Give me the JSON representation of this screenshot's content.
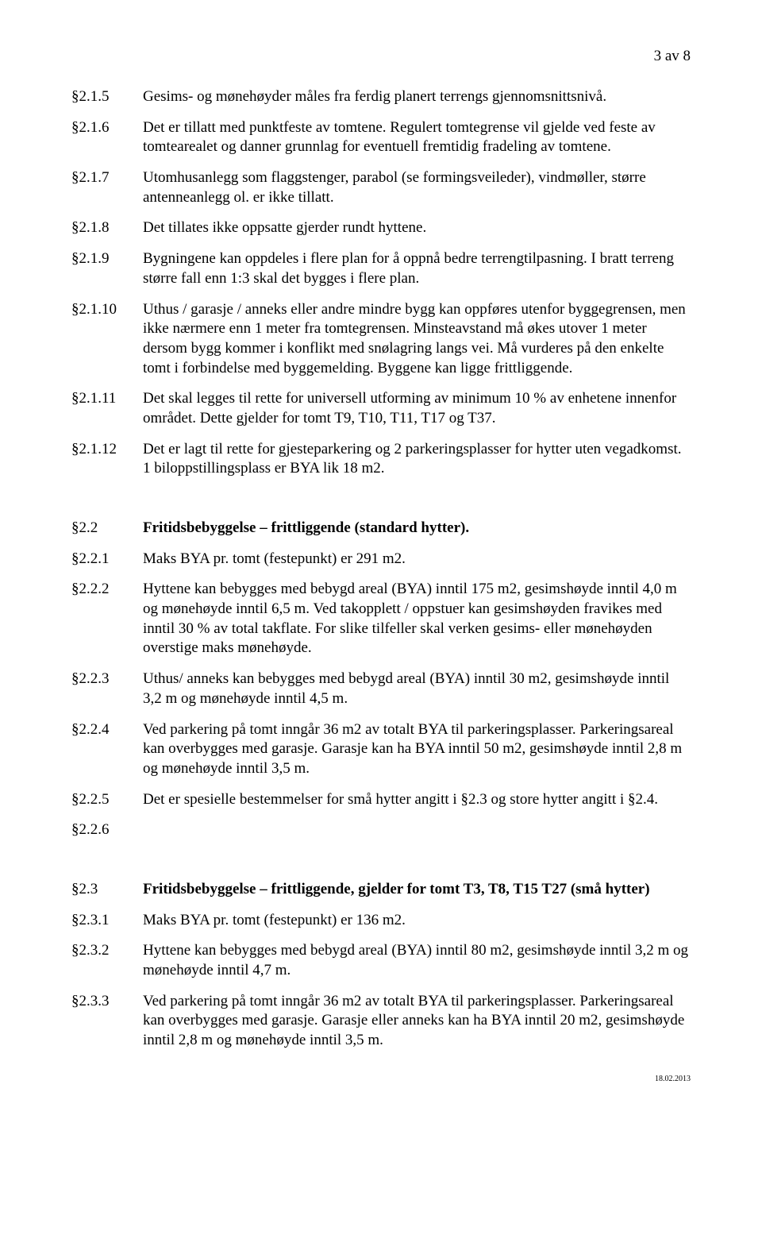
{
  "page_number": "3 av 8",
  "footer_date": "18.02.2013",
  "sections": {
    "s215": {
      "ref": "§2.1.5",
      "text": "Gesims- og mønehøyder måles fra ferdig planert terrengs gjennomsnittsnivå."
    },
    "s216": {
      "ref": "§2.1.6",
      "text": "Det er tillatt med punktfeste av tomtene. Regulert tomtegrense vil gjelde ved feste av tomtearealet og danner grunnlag for eventuell fremtidig fradeling av tomtene."
    },
    "s217": {
      "ref": "§2.1.7",
      "text": "Utomhusanlegg som flaggstenger, parabol (se formingsveileder), vindmøller, større antenneanlegg ol. er ikke tillatt."
    },
    "s218": {
      "ref": "§2.1.8",
      "text": "Det tillates ikke oppsatte gjerder rundt hyttene."
    },
    "s219": {
      "ref": "§2.1.9",
      "text": "Bygningene kan oppdeles i flere plan for å oppnå bedre terrengtilpasning. I bratt terreng større fall enn 1:3 skal det bygges i flere plan."
    },
    "s2110": {
      "ref": "§2.1.10",
      "text": "Uthus / garasje / anneks eller andre mindre bygg kan oppføres utenfor byggegrensen, men ikke nærmere enn 1 meter fra tomtegrensen. Minsteavstand må økes utover 1 meter dersom bygg kommer i konflikt med snølagring langs vei. Må vurderes på den enkelte tomt i forbindelse med byggemelding. Byggene kan ligge frittliggende."
    },
    "s2111": {
      "ref": "§2.1.11",
      "text": "Det skal legges til rette for universell utforming av minimum 10 % av enhetene innenfor området. Dette gjelder for tomt T9, T10, T11, T17 og T37."
    },
    "s2112": {
      "ref": "§2.1.12",
      "text": "Det er lagt til rette for gjesteparkering og 2 parkeringsplasser for hytter uten vegadkomst. 1 biloppstillingsplass er BYA lik 18 m2."
    },
    "s22": {
      "ref": "§2.2",
      "text": "Fritidsbebyggelse – frittliggende (standard hytter)."
    },
    "s221": {
      "ref": "§2.2.1",
      "text": "Maks BYA pr. tomt (festepunkt) er 291 m2."
    },
    "s222": {
      "ref": "§2.2.2",
      "text": "Hyttene kan bebygges med bebygd areal (BYA) inntil 175 m2, gesimshøyde inntil 4,0 m og mønehøyde inntil 6,5 m. Ved takopplett / oppstuer kan gesimshøyden fravikes med inntil 30 % av total takflate. For slike tilfeller skal verken gesims- eller mønehøyden overstige maks mønehøyde."
    },
    "s223": {
      "ref": "§2.2.3",
      "text": "Uthus/ anneks kan bebygges med bebygd areal (BYA) inntil 30 m2, gesimshøyde inntil 3,2 m og mønehøyde inntil 4,5 m."
    },
    "s224": {
      "ref": "§2.2.4",
      "text": "Ved parkering på tomt inngår 36 m2 av totalt BYA til parkeringsplasser. Parkeringsareal kan overbygges med garasje. Garasje kan ha BYA inntil 50 m2, gesimshøyde inntil 2,8 m og mønehøyde inntil 3,5 m."
    },
    "s225": {
      "ref": "§2.2.5",
      "text": "Det er spesielle bestemmelser for små hytter angitt i §2.3 og store hytter angitt i §2.4."
    },
    "s226": {
      "ref": "§2.2.6",
      "text": ""
    },
    "s23": {
      "ref": "§2.3",
      "text": "Fritidsbebyggelse – frittliggende, gjelder for tomt T3, T8, T15 T27 (små hytter)"
    },
    "s231": {
      "ref": "§2.3.1",
      "text": "Maks BYA pr. tomt (festepunkt) er 136 m2."
    },
    "s232": {
      "ref": "§2.3.2",
      "text": "Hyttene kan bebygges med bebygd areal (BYA) inntil 80 m2, gesimshøyde inntil 3,2 m og mønehøyde inntil 4,7 m."
    },
    "s233": {
      "ref": "§2.3.3",
      "text": "Ved parkering på tomt inngår 36 m2 av totalt BYA til parkeringsplasser. Parkeringsareal kan overbygges med garasje. Garasje eller anneks kan ha BYA inntil 20 m2, gesimshøyde inntil 2,8 m og mønehøyde inntil 3,5 m."
    }
  }
}
